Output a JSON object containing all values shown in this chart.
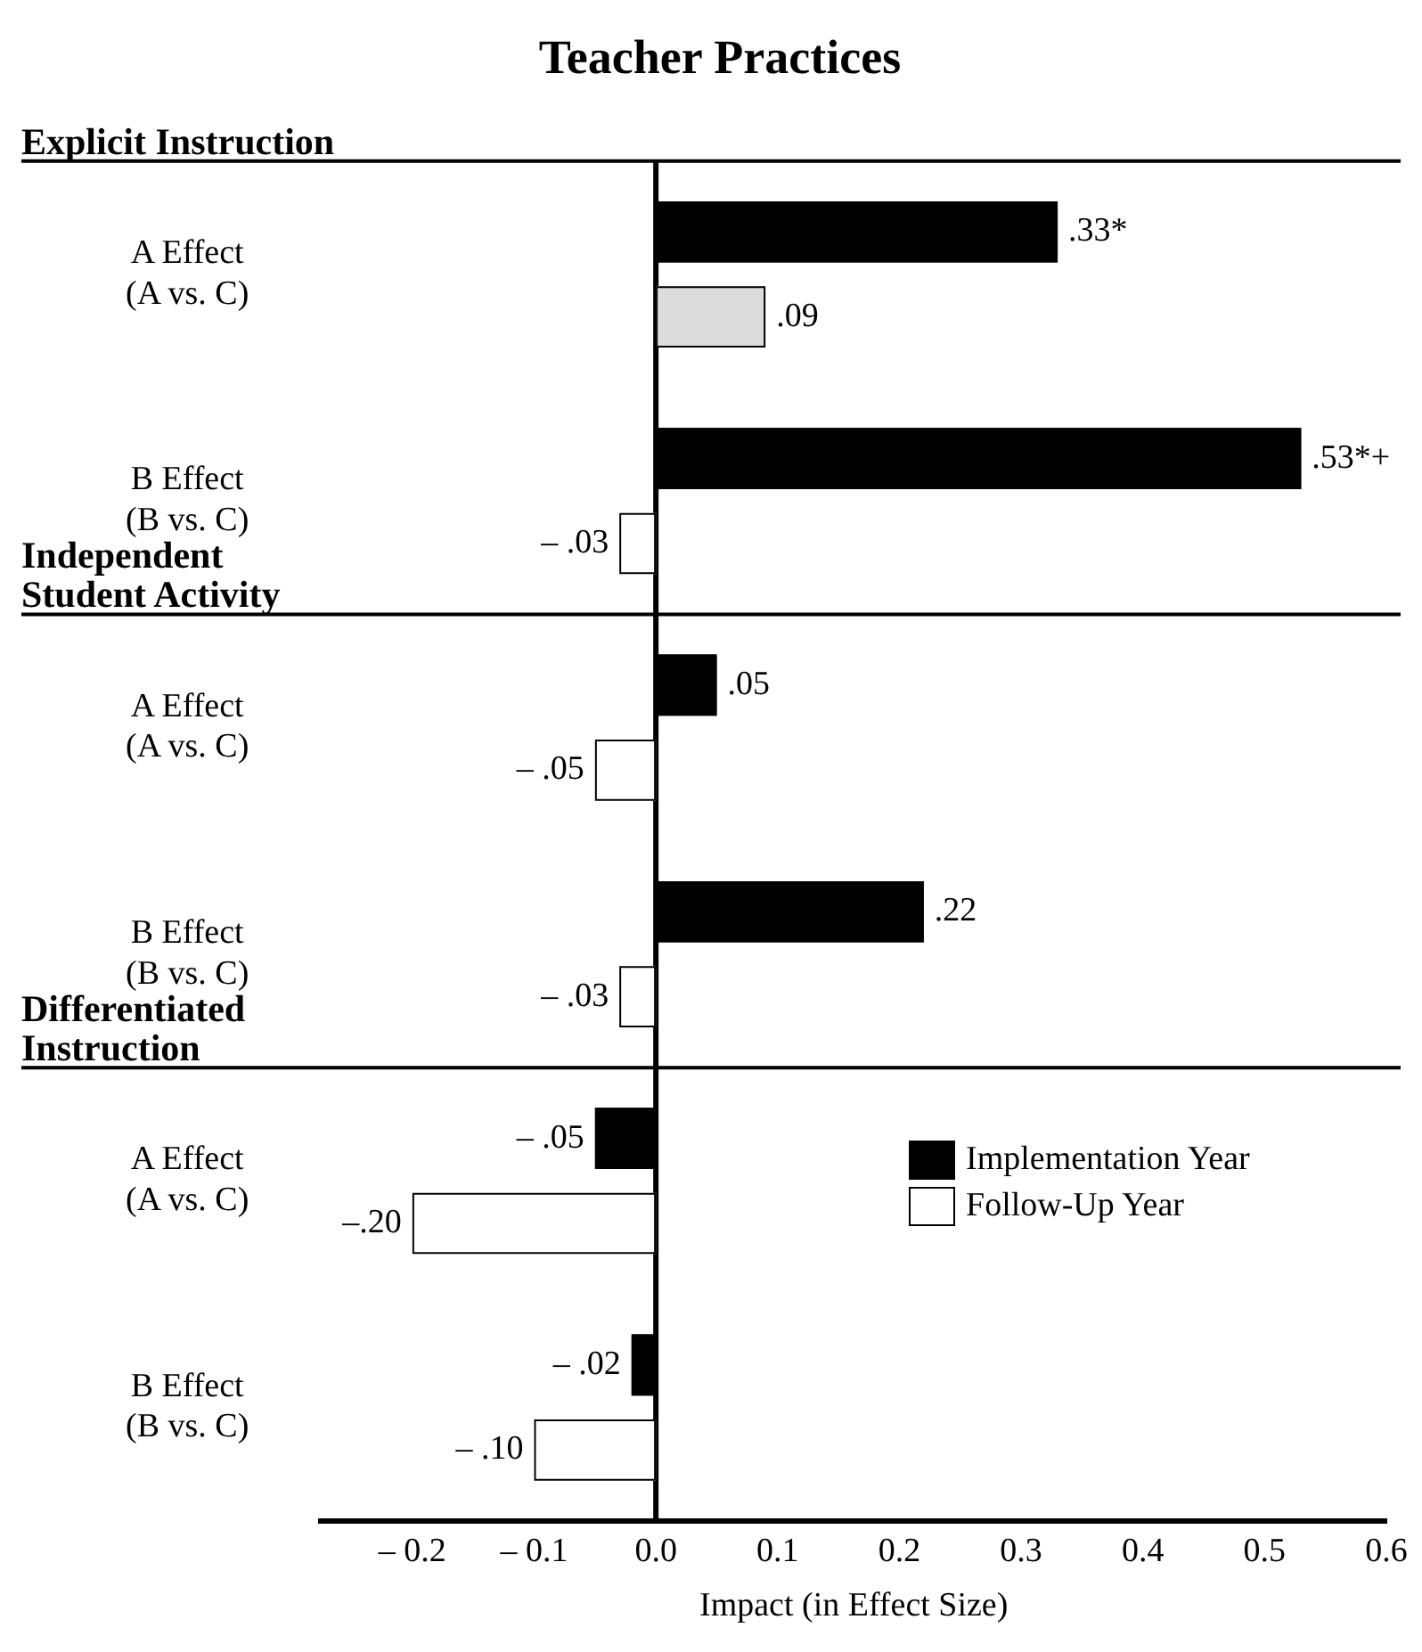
{
  "chart_data": {
    "type": "bar",
    "orientation": "horizontal",
    "title": "Teacher Practices",
    "xlabel": "Impact (in Effect Size)",
    "categories": [
      "A Effect\n(A vs. C)",
      "B Effect\n(B vs. C)",
      "A Effect\n(A vs. C)",
      "B Effect\n(B vs. C)",
      "A Effect\n(A vs. C)",
      "B Effect\n(B vs. C)"
    ],
    "series": [
      {
        "name": "Implementation Year",
        "color": "#000000",
        "values": [
          0.33,
          0.53,
          0.05,
          0.22,
          -0.05,
          -0.02
        ],
        "value_labels": [
          ".33*",
          ".53*+",
          ".05",
          ".22",
          "– .05",
          "– .02"
        ]
      },
      {
        "name": "Follow-Up Year",
        "color": "#ffffff",
        "colors": [
          "#dcdcdc",
          "#ffffff",
          "#ffffff",
          "#ffffff",
          "#ffffff",
          "#ffffff"
        ],
        "values": [
          0.09,
          -0.03,
          -0.05,
          -0.03,
          -0.2,
          -0.1
        ],
        "value_labels": [
          ".09",
          "– .03",
          "– .05",
          "– .03",
          "–.20",
          "– .10"
        ]
      }
    ],
    "xlim": [
      -0.275,
      0.6
    ],
    "xticks": [
      {
        "value": -0.2,
        "label": "– 0.2"
      },
      {
        "value": -0.1,
        "label": "– 0.1"
      },
      {
        "value": 0,
        "label": "0.0"
      },
      {
        "value": 0.1,
        "label": "0.1"
      },
      {
        "value": 0.2,
        "label": "0.2"
      },
      {
        "value": 0.3,
        "label": "0.3"
      },
      {
        "value": 0.4,
        "label": "0.4"
      },
      {
        "value": 0.5,
        "label": "0.5"
      },
      {
        "value": 0.6,
        "label": "0.6"
      }
    ],
    "annotations": [
      "Explicit Instruction",
      "Independent Student Activity",
      "Differentiated Instruction"
    ],
    "grid": false,
    "legend": "bottom right"
  }
}
